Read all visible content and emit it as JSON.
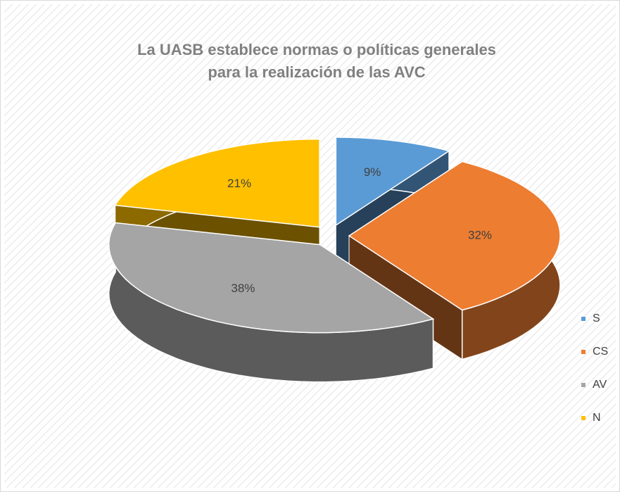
{
  "chart_data": {
    "type": "pie3d",
    "title": [
      "La UASB establece normas o políticas generales",
      "para la realización de las AVC"
    ],
    "categories": [
      "S",
      "CS",
      "AV",
      "N"
    ],
    "values": [
      9,
      32,
      38,
      21
    ],
    "value_labels": [
      "9%",
      "32%",
      "38%",
      "21%"
    ],
    "colors": [
      "#5b9bd5",
      "#ed7d31",
      "#a5a5a5",
      "#ffc000"
    ],
    "legend": "right"
  }
}
